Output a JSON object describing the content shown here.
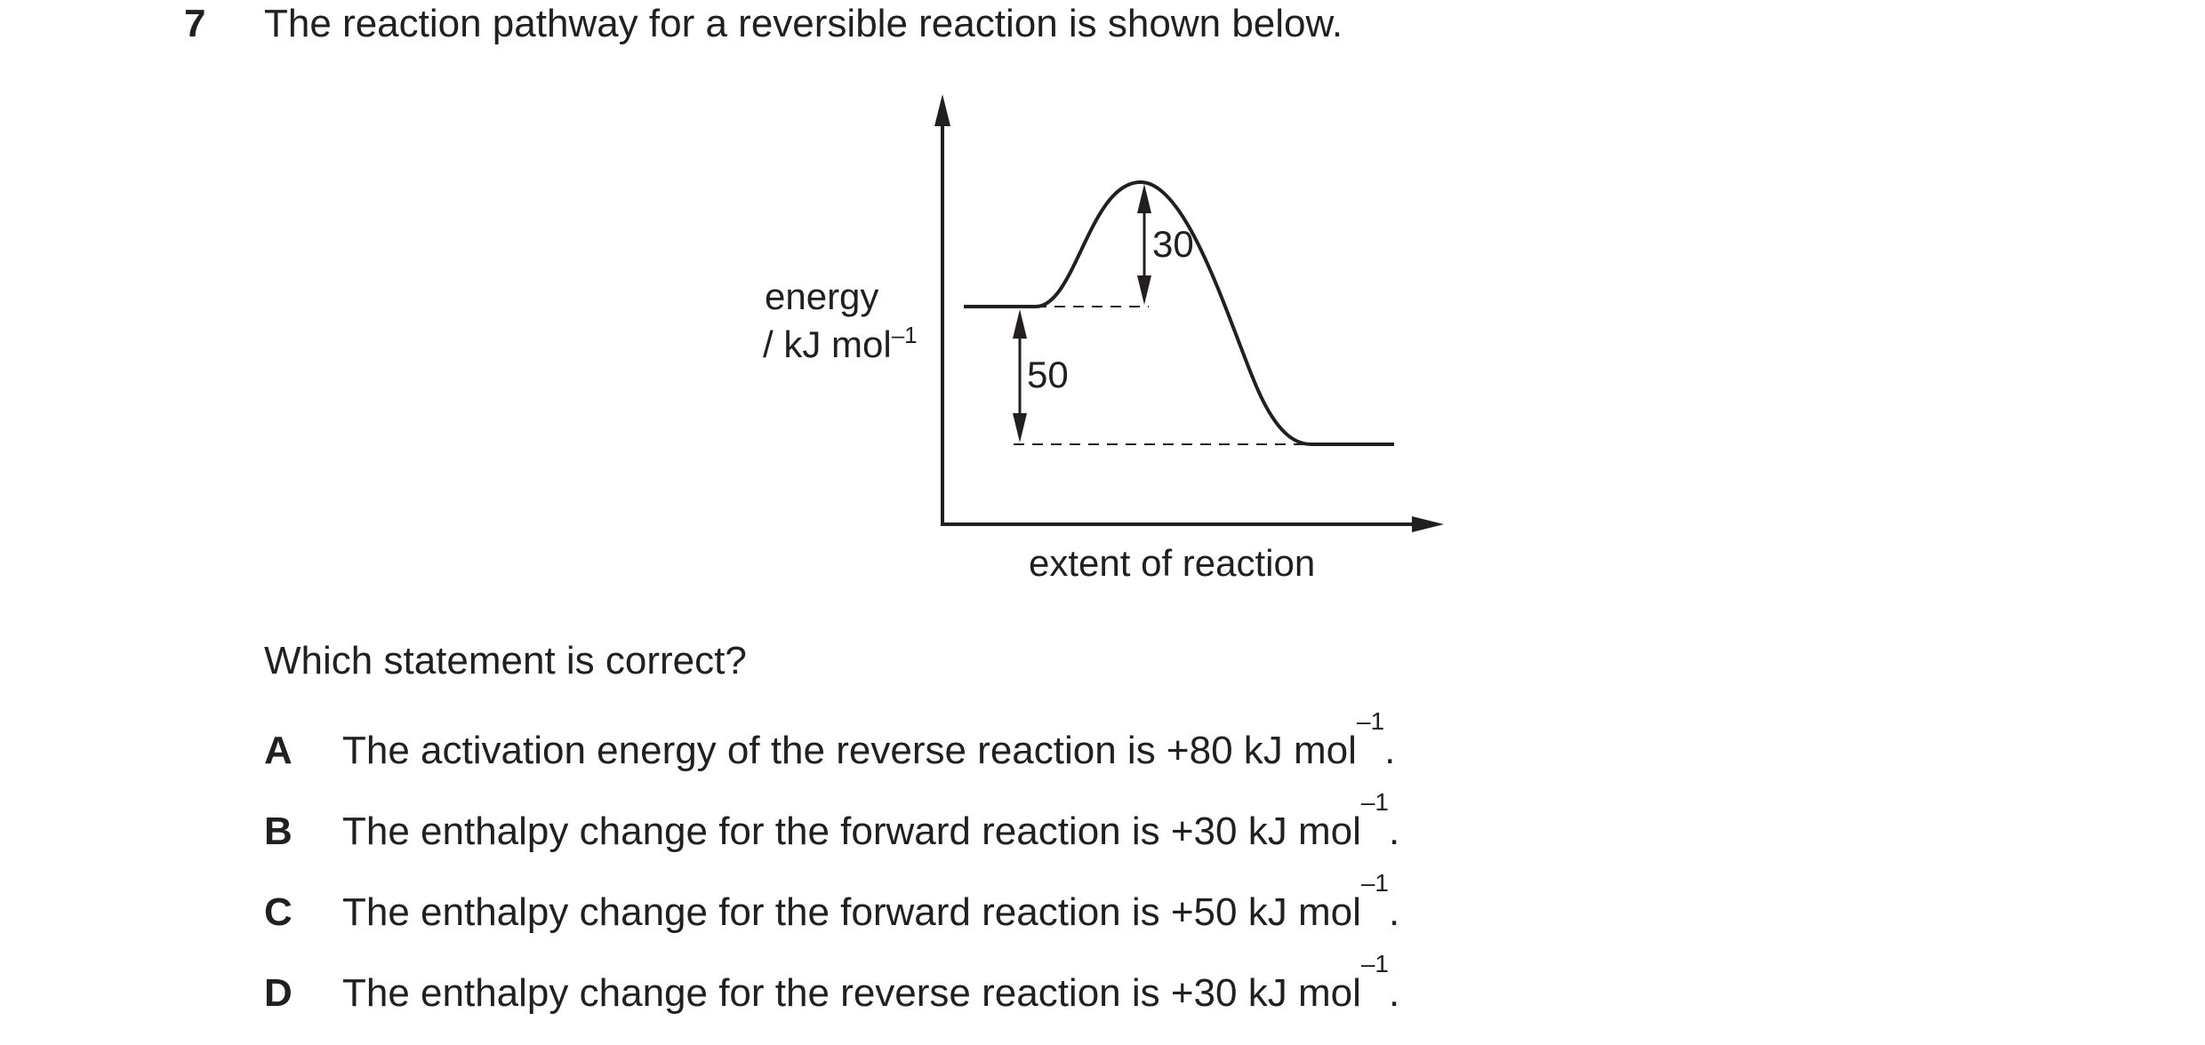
{
  "question": {
    "number": "7",
    "stem": "The reaction pathway for a reversible reaction is shown below."
  },
  "diagram": {
    "y_axis_label_line1": "energy",
    "y_axis_label_line2_prefix": "/ kJ mol",
    "y_axis_label_line2_sup": "–1",
    "x_axis_label": "extent of reaction",
    "activation_energy_label": "30",
    "enthalpy_change_label": "50"
  },
  "prompt": "Which statement is correct?",
  "options": [
    {
      "letter": "A",
      "text": "The activation energy of the reverse reaction is +80 kJ mol",
      "sup": "–1",
      "end": "."
    },
    {
      "letter": "B",
      "text": "The enthalpy change for the forward reaction is +30 kJ mol",
      "sup": "–1",
      "end": "."
    },
    {
      "letter": "C",
      "text": "The enthalpy change for the forward reaction is +50 kJ mol",
      "sup": "–1",
      "end": "."
    },
    {
      "letter": "D",
      "text": "The enthalpy change for the reverse reaction is +30 kJ mol",
      "sup": "–1",
      "end": "."
    }
  ]
}
